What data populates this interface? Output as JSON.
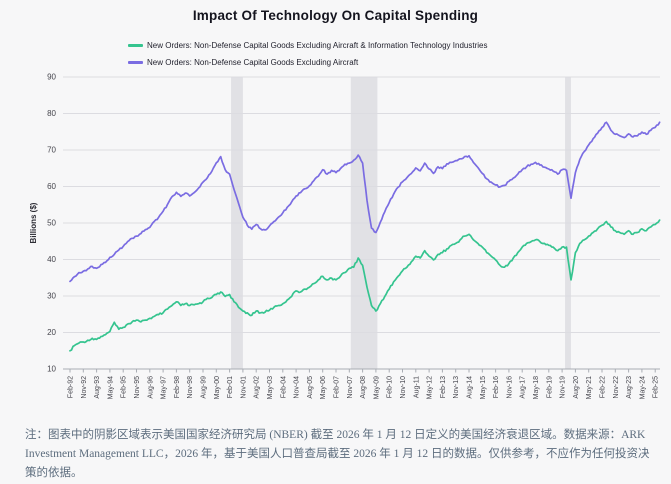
{
  "title": "Impact Of Technology On Capital Spending",
  "footnote": "注：图表中的阴影区域表示美国国家经济研究局 (NBER) 截至 2026 年 1 月 12 日定义的美国经济衰退区域。数据来源：ARK Investment Management LLC，2026 年，基于美国人口普查局截至 2026 年 1 月 12 日的数据。仅供参考，不应作为任何投资决策的依据。",
  "colors": {
    "background": "#f7f7f8",
    "gridline": "#dcdce1",
    "axis": "#a9adb4",
    "recession_band": "#e1e1e5",
    "title_text": "#14141e",
    "tick_text": "#45454d",
    "footnote_text": "#5d6d7e",
    "green_series": "#35c48f",
    "purple_series": "#7a6ce2"
  },
  "chart_data": {
    "type": "line",
    "title": "Impact Of Technology On Capital Spending",
    "xlabel": "",
    "ylabel": "Billions ($)",
    "ylim": [
      10,
      90
    ],
    "yticks": [
      10,
      20,
      30,
      40,
      50,
      60,
      70,
      80,
      90
    ],
    "grid": true,
    "legend_position": "top",
    "x_start_label": "Feb-92",
    "x_months_per_point": 3,
    "x_tick_every_months": 9,
    "x_tick_labels": [
      "Feb-92",
      "Nov-92",
      "Aug-93",
      "May-94",
      "Feb-95",
      "Nov-95",
      "Aug-96",
      "May-97",
      "Feb-98",
      "Nov-98",
      "Aug-99",
      "May-00",
      "Feb-01",
      "Nov-01",
      "Aug-02",
      "May-03",
      "Feb-04",
      "Nov-04",
      "Aug-05",
      "May-06",
      "Feb-07",
      "Nov-07",
      "Aug-08",
      "May-09",
      "Feb-10",
      "Nov-10",
      "Aug-11",
      "May-12",
      "Feb-13",
      "Nov-13",
      "Aug-14",
      "May-15",
      "Feb-16",
      "Nov-16",
      "Aug-17",
      "May-18",
      "Feb-19",
      "Nov-19",
      "Aug-20",
      "May-21",
      "Feb-22",
      "Nov-22",
      "Aug-23",
      "May-24",
      "Feb-25"
    ],
    "recession_bands_months": [
      [
        109,
        117
      ],
      [
        190,
        208
      ],
      [
        335,
        339
      ]
    ],
    "recession_bands_note": "NBER US recessions: Mar-01 to Nov-01, Dec-07 to Jun-09, Feb-20 to Apr-20",
    "series": [
      {
        "name": "New Orders: Non-Defense Capital Goods Excluding Aircraft & Information Technology Industries",
        "color": "#35c48f",
        "noise_amp": 2.2,
        "values": [
          15,
          16.4,
          17.1,
          17.4,
          17.9,
          18.4,
          18.1,
          18.9,
          19.4,
          20.3,
          22.8,
          20.9,
          21.4,
          22.3,
          22.9,
          23.4,
          22.9,
          23.4,
          23.9,
          24.4,
          24.9,
          25.4,
          26.4,
          27.4,
          28.4,
          27.4,
          27.9,
          27.4,
          27.6,
          27.9,
          28.4,
          29.4,
          29.6,
          30.4,
          31.1,
          29.9,
          30.4,
          28.4,
          26.9,
          25.9,
          25.4,
          24.7,
          25.9,
          25.4,
          25.6,
          26.1,
          26.9,
          27.4,
          27.9,
          28.9,
          29.9,
          31.4,
          31.1,
          31.9,
          32.4,
          33.4,
          34.4,
          35.4,
          34.4,
          34.9,
          34.4,
          35.4,
          36.4,
          37.6,
          37.9,
          40.4,
          38.4,
          32.4,
          27.4,
          25.9,
          27.9,
          29.9,
          31.9,
          33.9,
          35.4,
          36.9,
          37.9,
          39.4,
          40.9,
          40.4,
          42.4,
          40.9,
          39.9,
          41.4,
          41.9,
          42.9,
          43.9,
          44.4,
          45.4,
          46.4,
          46.9,
          45.4,
          44.4,
          43.4,
          41.9,
          40.9,
          39.9,
          38.4,
          37.9,
          38.9,
          40.4,
          41.9,
          43.4,
          44.4,
          44.9,
          45.4,
          44.9,
          44.4,
          43.9,
          43.4,
          42.4,
          43.4,
          43.4,
          34.4,
          41.9,
          44.4,
          45.4,
          46.4,
          47.4,
          48.4,
          49.4,
          50.4,
          48.9,
          47.9,
          47.4,
          46.9,
          47.9,
          46.9,
          47.4,
          48.4,
          47.9,
          48.9,
          49.6,
          50.8
        ]
      },
      {
        "name": "New Orders: Non-Defense Capital Goods Excluding Aircraft",
        "color": "#7a6ce2",
        "noise_amp": 1.8,
        "values": [
          34,
          35.3,
          36.4,
          36.8,
          37.4,
          38.1,
          37.6,
          38.6,
          39.2,
          40.6,
          41.4,
          42.6,
          43.6,
          44.9,
          45.8,
          46.4,
          47.1,
          48.2,
          48.8,
          50.4,
          51.6,
          53.2,
          55.1,
          57.2,
          58.4,
          57.3,
          58.2,
          57.4,
          58.3,
          59.6,
          61.2,
          62.4,
          64.2,
          66.5,
          68.2,
          64.6,
          63.4,
          59.2,
          55.4,
          51.6,
          49.4,
          48.3,
          49.6,
          48.4,
          48.1,
          49.2,
          50.4,
          51.6,
          52.8,
          54.3,
          55.8,
          57.4,
          58.3,
          59.4,
          60.2,
          61.6,
          62.8,
          64.6,
          63.4,
          64.4,
          63.8,
          64.9,
          66.1,
          66.4,
          67.2,
          68.6,
          66.4,
          56.2,
          48.6,
          47.4,
          50.2,
          53.1,
          55.6,
          57.9,
          59.8,
          61.3,
          62.4,
          63.6,
          65.1,
          64.3,
          66.4,
          64.8,
          63.6,
          65.4,
          64.9,
          66.2,
          66.6,
          67.1,
          67.6,
          68.2,
          68.4,
          66.6,
          65.2,
          63.6,
          62.1,
          61.2,
          60.4,
          59.9,
          60.3,
          61.4,
          62.3,
          63.4,
          64.6,
          65.4,
          66.1,
          66.6,
          65.9,
          65.3,
          64.8,
          64.2,
          63.4,
          64.6,
          64.4,
          56.8,
          63.8,
          67.4,
          69.6,
          71.4,
          73.1,
          74.6,
          76.2,
          77.6,
          75.4,
          74.3,
          73.9,
          73.4,
          74.4,
          73.6,
          73.9,
          74.9,
          74.3,
          75.4,
          76.2,
          77.6
        ]
      }
    ],
    "legend": [
      "New Orders: Non-Defense Capital Goods Excluding Aircraft & Information Technology Industries",
      "New Orders: Non-Defense Capital Goods Excluding Aircraft"
    ]
  }
}
